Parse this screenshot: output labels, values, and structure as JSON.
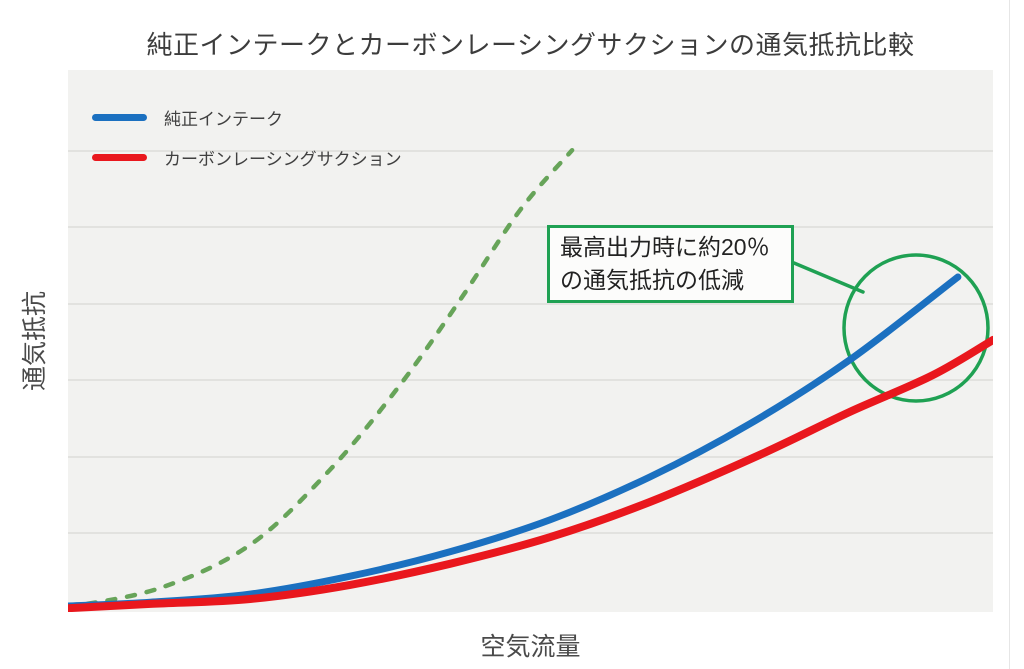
{
  "title": "純正インテークとカーボンレーシングサクションの通気抵抗比較",
  "axes": {
    "x_label": "空気流量",
    "y_label": "通気抵抗"
  },
  "legend": {
    "items": [
      {
        "label": "純正インテーク",
        "color": "#1b70c0"
      },
      {
        "label": "カーボンレーシングサクション",
        "color": "#e9171d"
      }
    ]
  },
  "annotation": {
    "line1": "最高出力時に約20％",
    "line2": "の通気抵抗の低減"
  },
  "colors": {
    "stock_blue": "#1b70c0",
    "carbon_red": "#e9171d",
    "dashed_green": "#67a459",
    "callout_green": "#1fa153",
    "plot_background": "#f2f2f0",
    "gridline": "#e2e2df",
    "title_text": "#3c3c3c"
  },
  "chart_data": {
    "type": "line",
    "title": "純正インテークとカーボンレーシングサクションの通気抵抗比較",
    "xlabel": "空気流量",
    "ylabel": "通気抵抗",
    "x_range": [
      0,
      100
    ],
    "y_range": [
      0,
      100
    ],
    "axis_ticks_shown": false,
    "grid": "horizontal",
    "legend_position": "top-left",
    "series": [
      {
        "name": "純正インテーク",
        "color": "#1b70c0",
        "style": "solid",
        "x": [
          0,
          8.9,
          19.7,
          30.5,
          41.3,
          52.1,
          62.9,
          73.7,
          84.5,
          96.2
        ],
        "y": [
          1.1,
          1.8,
          3.3,
          6.6,
          11.1,
          17.0,
          24.9,
          34.7,
          46.5,
          61.8
        ]
      },
      {
        "name": "カーボンレーシングサクション",
        "color": "#e9171d",
        "style": "solid",
        "x": [
          0,
          8.9,
          19.7,
          30.5,
          41.3,
          52.1,
          62.9,
          74.8,
          84.5,
          93.5,
          100
        ],
        "y": [
          0.7,
          1.5,
          2.4,
          5.0,
          8.9,
          13.8,
          20.3,
          29.0,
          36.9,
          43.7,
          50.2
        ]
      },
      {
        "name": "",
        "color": "#67a459",
        "style": "dashed",
        "x": [
          0,
          9.9,
          19.7,
          28.3,
          35.9,
          42.4,
          48.9,
          54.5
        ],
        "y": [
          0.9,
          4.4,
          12.4,
          26.2,
          41.9,
          57.6,
          74.2,
          85.2
        ]
      }
    ],
    "annotation": {
      "label_line1": "最高出力時に約20％",
      "label_line2": "の通気抵抗の低減",
      "shape": "circle-callout-on-curve-ends"
    }
  }
}
